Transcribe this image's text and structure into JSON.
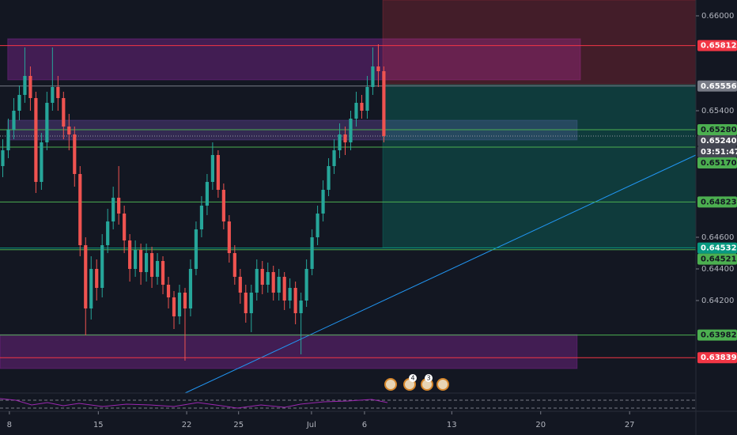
{
  "chart_data": {
    "type": "candlestick",
    "x": [
      0,
      1,
      2,
      3,
      4,
      5,
      6,
      7,
      8,
      9,
      10,
      11,
      12,
      13,
      14,
      15,
      16,
      17,
      18,
      19,
      20,
      21,
      22,
      23,
      24,
      25,
      26,
      27,
      28,
      29,
      30,
      31,
      32,
      33,
      34,
      35,
      36,
      37,
      38,
      39,
      40,
      41,
      42,
      43,
      44,
      45,
      46,
      47,
      48,
      49,
      50,
      51,
      52,
      53,
      54,
      55,
      56,
      57,
      58,
      59,
      60,
      61,
      62,
      63,
      64,
      65,
      66,
      67,
      68,
      69
    ],
    "open": [
      0.6505,
      0.6515,
      0.6528,
      0.654,
      0.655,
      0.6562,
      0.6548,
      0.6495,
      0.652,
      0.6545,
      0.6555,
      0.6548,
      0.653,
      0.6525,
      0.65,
      0.6455,
      0.6415,
      0.644,
      0.6428,
      0.6455,
      0.647,
      0.6485,
      0.6475,
      0.6458,
      0.644,
      0.6452,
      0.6438,
      0.645,
      0.6435,
      0.6445,
      0.643,
      0.6422,
      0.641,
      0.6425,
      0.6415,
      0.644,
      0.6465,
      0.648,
      0.6495,
      0.6512,
      0.649,
      0.647,
      0.645,
      0.6435,
      0.6425,
      0.6412,
      0.6425,
      0.644,
      0.643,
      0.6438,
      0.6425,
      0.6435,
      0.642,
      0.6428,
      0.6412,
      0.642,
      0.644,
      0.646,
      0.6475,
      0.649,
      0.6505,
      0.6515,
      0.6525,
      0.652,
      0.6535,
      0.6545,
      0.654,
      0.6555,
      0.6568,
      0.6565
    ],
    "high": [
      0.6522,
      0.6535,
      0.6548,
      0.6556,
      0.658,
      0.6568,
      0.6552,
      0.6526,
      0.6552,
      0.658,
      0.6562,
      0.6552,
      0.6538,
      0.653,
      0.6505,
      0.646,
      0.6448,
      0.6446,
      0.6462,
      0.6478,
      0.6492,
      0.6505,
      0.648,
      0.6462,
      0.6458,
      0.6456,
      0.6456,
      0.6454,
      0.645,
      0.6448,
      0.6435,
      0.6426,
      0.643,
      0.6428,
      0.6446,
      0.647,
      0.6486,
      0.65,
      0.652,
      0.6515,
      0.6494,
      0.6474,
      0.6455,
      0.644,
      0.643,
      0.643,
      0.6446,
      0.6445,
      0.6444,
      0.6442,
      0.644,
      0.6438,
      0.6434,
      0.6432,
      0.6425,
      0.6446,
      0.6465,
      0.648,
      0.6496,
      0.651,
      0.6522,
      0.6532,
      0.653,
      0.654,
      0.6552,
      0.655,
      0.6562,
      0.658,
      0.6582,
      0.6568
    ],
    "low": [
      0.6498,
      0.651,
      0.6522,
      0.6534,
      0.6545,
      0.654,
      0.6488,
      0.649,
      0.6515,
      0.654,
      0.654,
      0.6522,
      0.6515,
      0.6492,
      0.6448,
      0.6398,
      0.6408,
      0.642,
      0.6422,
      0.645,
      0.6465,
      0.6468,
      0.645,
      0.6432,
      0.6435,
      0.643,
      0.6432,
      0.6428,
      0.643,
      0.6424,
      0.6415,
      0.6402,
      0.6405,
      0.6382,
      0.641,
      0.6436,
      0.646,
      0.6474,
      0.649,
      0.6485,
      0.6465,
      0.6444,
      0.643,
      0.6418,
      0.6406,
      0.64,
      0.642,
      0.6424,
      0.6425,
      0.642,
      0.642,
      0.6414,
      0.6415,
      0.6405,
      0.6386,
      0.6416,
      0.6436,
      0.6455,
      0.647,
      0.6486,
      0.65,
      0.651,
      0.6512,
      0.6515,
      0.653,
      0.6535,
      0.6535,
      0.655,
      0.6555,
      0.652
    ],
    "close": [
      0.6515,
      0.6528,
      0.654,
      0.655,
      0.6562,
      0.6548,
      0.6495,
      0.652,
      0.6545,
      0.6555,
      0.6548,
      0.653,
      0.6525,
      0.65,
      0.6455,
      0.6415,
      0.644,
      0.6428,
      0.6455,
      0.647,
      0.6485,
      0.6475,
      0.6458,
      0.644,
      0.6452,
      0.6438,
      0.645,
      0.6435,
      0.6445,
      0.643,
      0.6422,
      0.641,
      0.6425,
      0.6415,
      0.644,
      0.6465,
      0.648,
      0.6495,
      0.6512,
      0.649,
      0.647,
      0.645,
      0.6435,
      0.6425,
      0.6412,
      0.6425,
      0.644,
      0.643,
      0.6438,
      0.6425,
      0.6435,
      0.642,
      0.6428,
      0.6412,
      0.642,
      0.644,
      0.646,
      0.6475,
      0.649,
      0.6505,
      0.6515,
      0.6525,
      0.652,
      0.6535,
      0.6545,
      0.654,
      0.6555,
      0.6568,
      0.6565,
      0.6524
    ],
    "up_color": "#26a69a",
    "down_color": "#ef5350",
    "xlim": [
      -0.5,
      125.5
    ],
    "xticks": [
      {
        "value": 1.2,
        "label": "8"
      },
      {
        "value": 17.3,
        "label": "15"
      },
      {
        "value": 33.3,
        "label": "22"
      },
      {
        "value": 42.7,
        "label": "25"
      },
      {
        "value": 55.9,
        "label": "Jul"
      },
      {
        "value": 65.5,
        "label": "6"
      },
      {
        "value": 81.3,
        "label": "13"
      },
      {
        "value": 97.4,
        "label": "20"
      },
      {
        "value": 113.5,
        "label": "27"
      }
    ],
    "ylim": [
      0.63615,
      0.661
    ],
    "yticks": [
      {
        "value": 0.66,
        "label": "0.66000"
      },
      {
        "value": 0.654,
        "label": "0.65400"
      },
      {
        "value": 0.646,
        "label": "0.64600"
      },
      {
        "value": 0.644,
        "label": "0.64400"
      },
      {
        "value": 0.642,
        "label": "0.64200"
      }
    ],
    "zones": [
      {
        "x": [
          0.9,
          104.6
        ],
        "y": [
          0.65595,
          0.65855
        ],
        "color": "rgba(156,39,176,0.35)"
      },
      {
        "x": [
          0.9,
          104.0
        ],
        "y": [
          0.65215,
          0.6534
        ],
        "color": "rgba(126,87,194,0.3)"
      },
      {
        "x": [
          -0.5,
          104.0
        ],
        "y": [
          0.6377,
          0.63985
        ],
        "color": "rgba(156,39,176,0.35)"
      },
      {
        "x": [
          68.8,
          125.5
        ],
        "y": [
          0.65565,
          0.661
        ],
        "color": "rgba(242,54,69,0.22)"
      },
      {
        "x": [
          68.8,
          125.5
        ],
        "y": [
          0.64535,
          0.65565
        ],
        "color": "rgba(8,153,129,0.28)"
      }
    ],
    "trendline": {
      "x": [
        33,
        125.5
      ],
      "y": [
        0.63615,
        0.6512
      ],
      "color": "#2196f3"
    },
    "levels": [
      {
        "value": 0.65812,
        "label": "0.65812",
        "color": "#f23645"
      },
      {
        "value": 0.65556,
        "label": "0.65556",
        "color": "#787b86"
      },
      {
        "value": 0.6528,
        "label": "0.65280",
        "color": "#4caf50"
      },
      {
        "value": 0.6524,
        "label": "0.65240",
        "color": "#434651"
      },
      {
        "value": 0.6517,
        "label": "0.65170",
        "color": "#4caf50"
      },
      {
        "value": 0.64823,
        "label": "0.64823",
        "color": "#4caf50"
      },
      {
        "value": 0.64532,
        "label": "0.64532",
        "color": "#089981"
      },
      {
        "value": 0.64521,
        "label": "0.64521",
        "color": "#4caf50"
      },
      {
        "value": 0.63982,
        "label": "0.63982",
        "color": "#4caf50"
      },
      {
        "value": 0.63839,
        "label": "0.63839",
        "color": "#f23645"
      }
    ],
    "countdown": "03:51:47",
    "event_badges": [
      "4",
      "3"
    ]
  }
}
